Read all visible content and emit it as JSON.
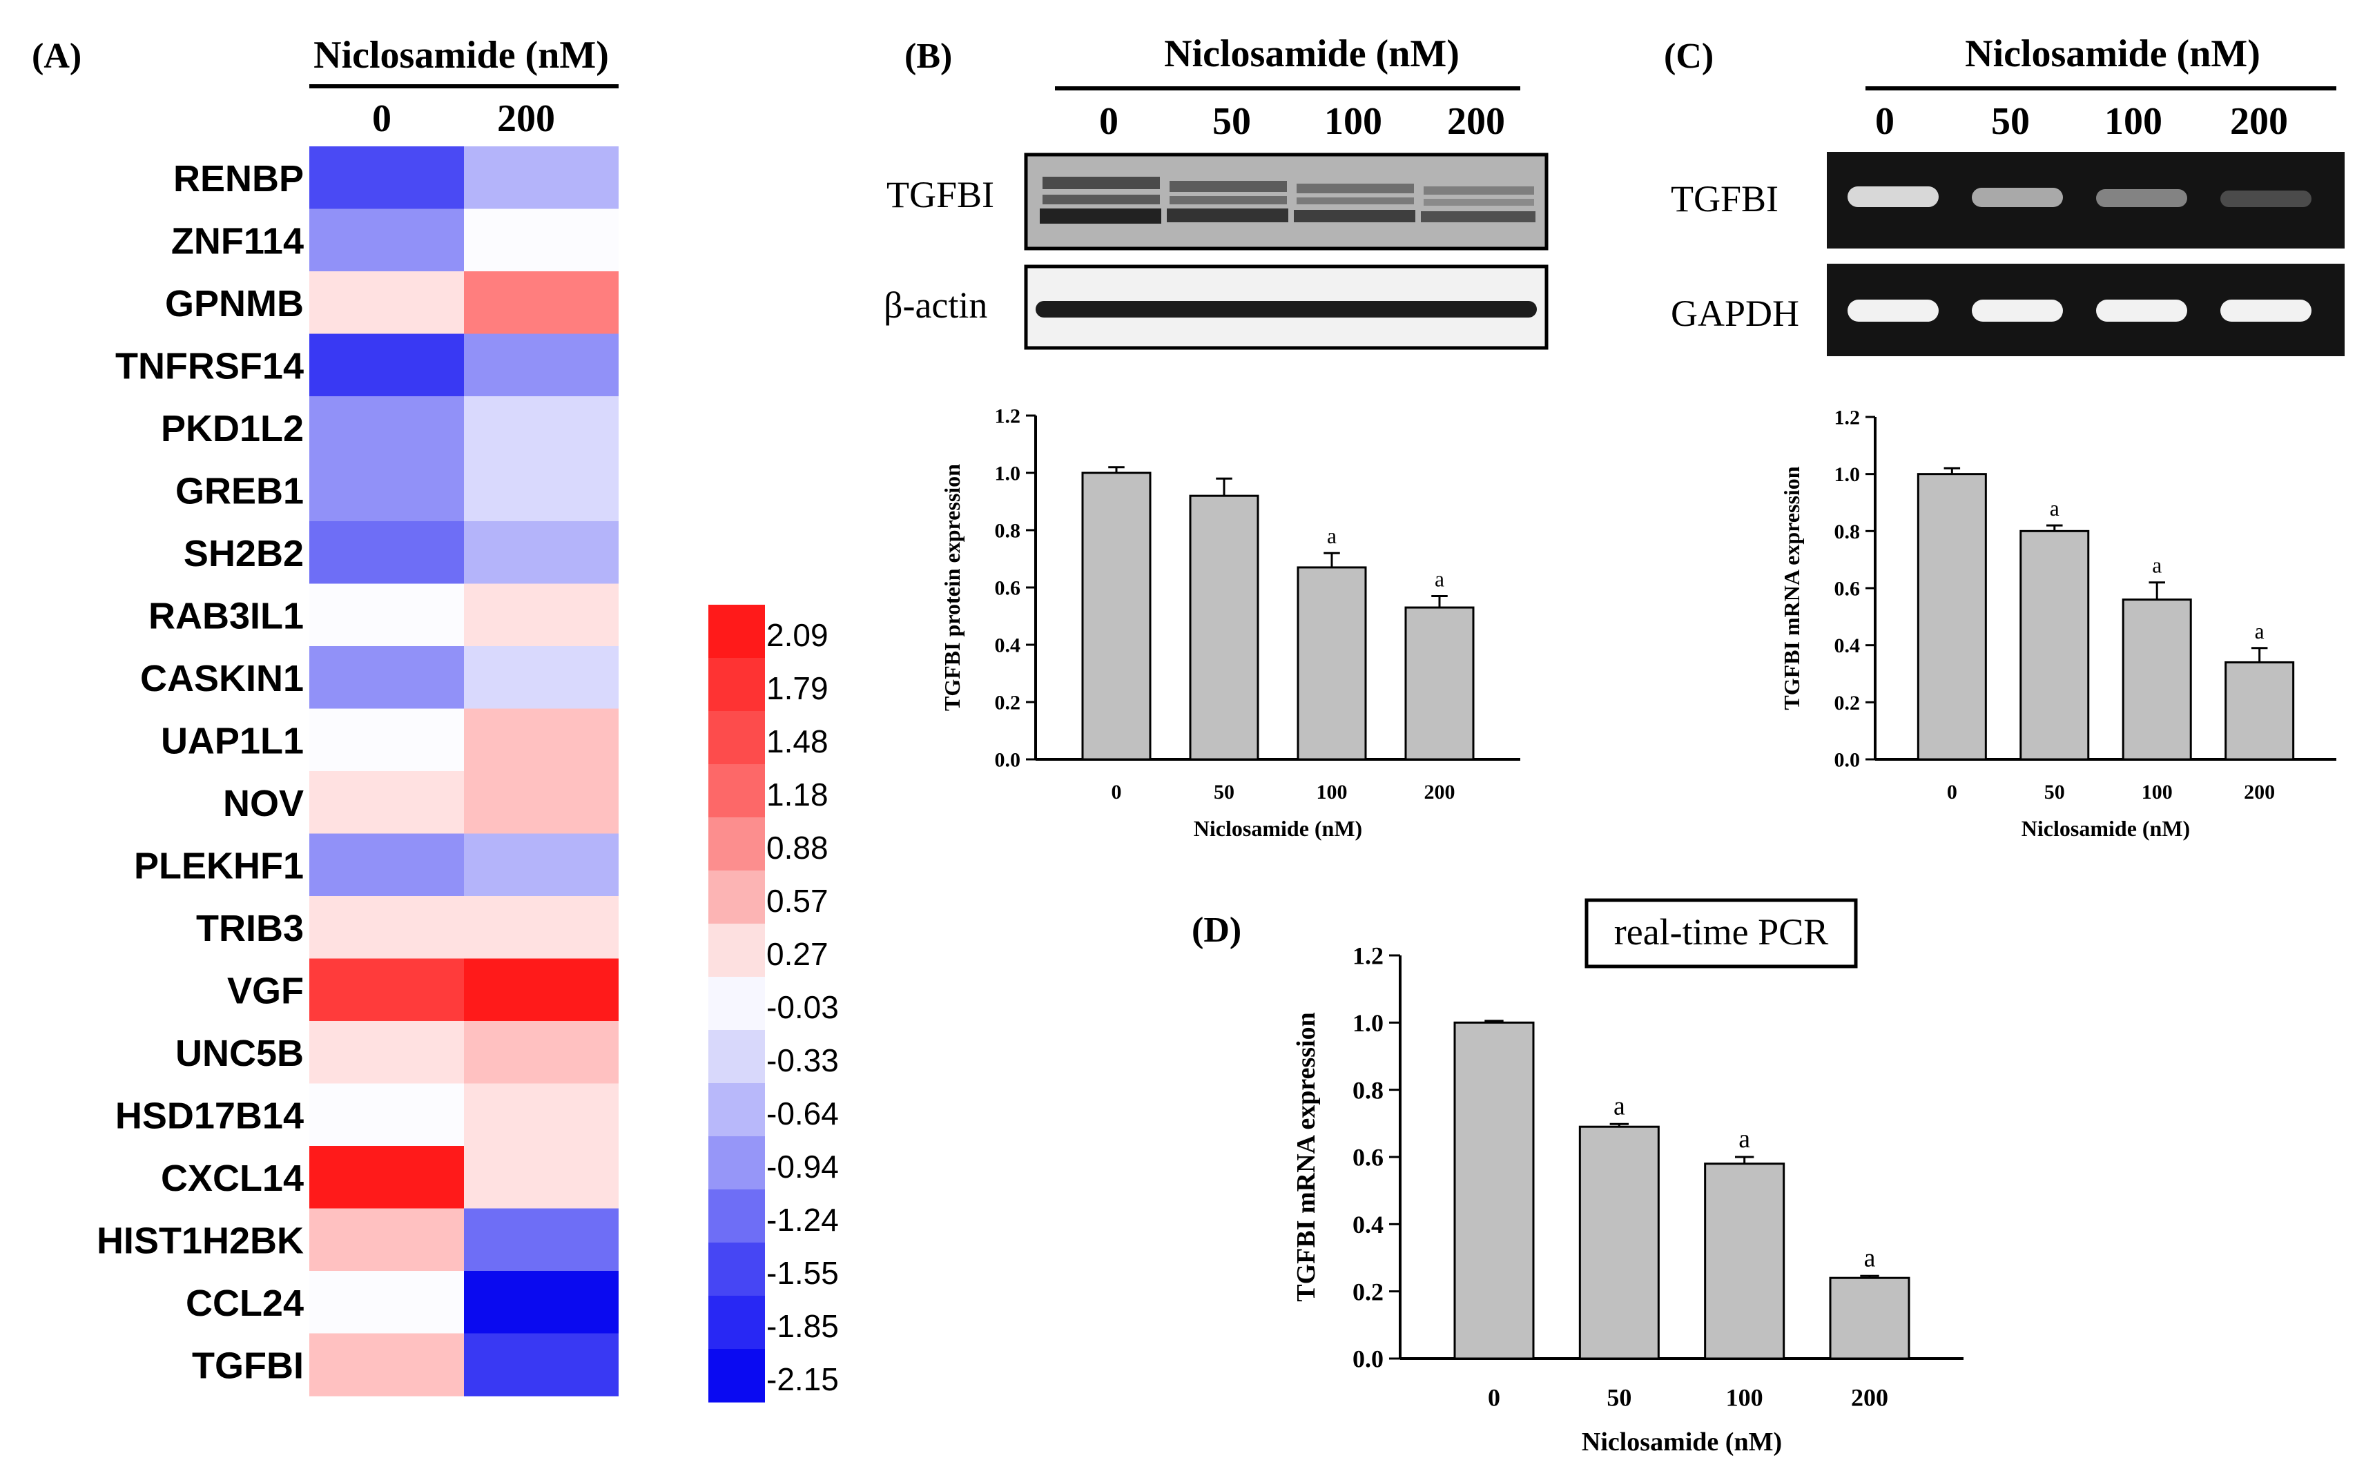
{
  "panels": {
    "A": {
      "label": "(A)",
      "header": "Niclosamide (nM)",
      "columns": [
        "0",
        "200"
      ],
      "genes": [
        "RENBP",
        "ZNF114",
        "GPNMB",
        "TNFRSF14",
        "PKD1L2",
        "GREB1",
        "SH2B2",
        "RAB3IL1",
        "CASKIN1",
        "UAP1L1",
        "NOV",
        "PLEKHF1",
        "TRIB3",
        "VGF",
        "UNC5B",
        "HSD17B14",
        "CXCL14",
        "HIST1H2BK",
        "CCL24",
        "TGFBI"
      ],
      "values": [
        [
          -1.55,
          -0.64
        ],
        [
          -0.94,
          -0.03
        ],
        [
          0.27,
          1.18
        ],
        [
          -1.7,
          -0.94
        ],
        [
          -0.94,
          -0.33
        ],
        [
          -0.94,
          -0.33
        ],
        [
          -1.24,
          -0.64
        ],
        [
          -0.03,
          0.27
        ],
        [
          -0.94,
          -0.33
        ],
        [
          -0.03,
          0.57
        ],
        [
          0.27,
          0.57
        ],
        [
          -0.94,
          -0.64
        ],
        [
          0.27,
          0.27
        ],
        [
          1.79,
          2.09
        ],
        [
          0.27,
          0.57
        ],
        [
          -0.03,
          0.27
        ],
        [
          2.09,
          0.27
        ],
        [
          0.57,
          -1.24
        ],
        [
          -0.03,
          -2.15
        ],
        [
          0.57,
          -1.7
        ]
      ],
      "scale_labels": [
        "2.09",
        "1.79",
        "1.48",
        "1.18",
        "0.88",
        "0.57",
        "0.27",
        "-0.03",
        "-0.33",
        "-0.64",
        "-0.94",
        "-1.24",
        "-1.55",
        "-1.85",
        "-2.15"
      ],
      "scale_colors": [
        "#ff1a1a",
        "#fe3333",
        "#fd4c4c",
        "#fd6868",
        "#fc8e8e",
        "#fcb4b4",
        "#fde0e0",
        "#f7f7ff",
        "#d8d8fb",
        "#b8b8fa",
        "#9696f8",
        "#6e6ef6",
        "#4646f4",
        "#2828f4",
        "#0a0af2"
      ]
    },
    "B": {
      "label": "(B)",
      "header": "Niclosamide (nM)",
      "lanes": [
        "0",
        "50",
        "100",
        "200"
      ],
      "blot_labels": [
        "TGFBI",
        "β-actin"
      ]
    },
    "C": {
      "label": "(C)",
      "header": "Niclosamide (nM)",
      "lanes": [
        "0",
        "50",
        "100",
        "200"
      ],
      "gel_labels": [
        "TGFBI",
        "GAPDH"
      ]
    },
    "D": {
      "label": "(D)",
      "box_label": "real-time PCR"
    }
  },
  "chart_data": [
    {
      "id": "B",
      "type": "bar",
      "categories": [
        "0",
        "50",
        "100",
        "200"
      ],
      "values": [
        1.0,
        0.92,
        0.67,
        0.53
      ],
      "errors": [
        0.02,
        0.06,
        0.05,
        0.04
      ],
      "annotations": [
        "",
        "",
        "a",
        "a"
      ],
      "xlabel": "Niclosamide (nM)",
      "ylabel": "TGFBI protein expression",
      "ylim": [
        0,
        1.2
      ],
      "yticks": [
        "0.0",
        "0.2",
        "0.4",
        "0.6",
        "0.8",
        "1.0",
        "1.2"
      ]
    },
    {
      "id": "C",
      "type": "bar",
      "categories": [
        "0",
        "50",
        "100",
        "200"
      ],
      "values": [
        1.0,
        0.8,
        0.56,
        0.34
      ],
      "errors": [
        0.02,
        0.02,
        0.06,
        0.05
      ],
      "annotations": [
        "",
        "a",
        "a",
        "a"
      ],
      "xlabel": "Niclosamide (nM)",
      "ylabel": "TGFBI mRNA expression",
      "ylim": [
        0,
        1.2
      ],
      "yticks": [
        "0.0",
        "0.2",
        "0.4",
        "0.6",
        "0.8",
        "1.0",
        "1.2"
      ]
    },
    {
      "id": "D",
      "type": "bar",
      "categories": [
        "0",
        "50",
        "100",
        "200"
      ],
      "values": [
        1.0,
        0.69,
        0.58,
        0.24
      ],
      "errors": [
        0.005,
        0.008,
        0.02,
        0.006
      ],
      "annotations": [
        "",
        "a",
        "a",
        "a"
      ],
      "xlabel": "Niclosamide (nM)",
      "ylabel": "TGFBI mRNA expression",
      "ylim": [
        0,
        1.2
      ],
      "yticks": [
        "0.0",
        "0.2",
        "0.4",
        "0.6",
        "0.8",
        "1.0",
        "1.2"
      ]
    }
  ]
}
